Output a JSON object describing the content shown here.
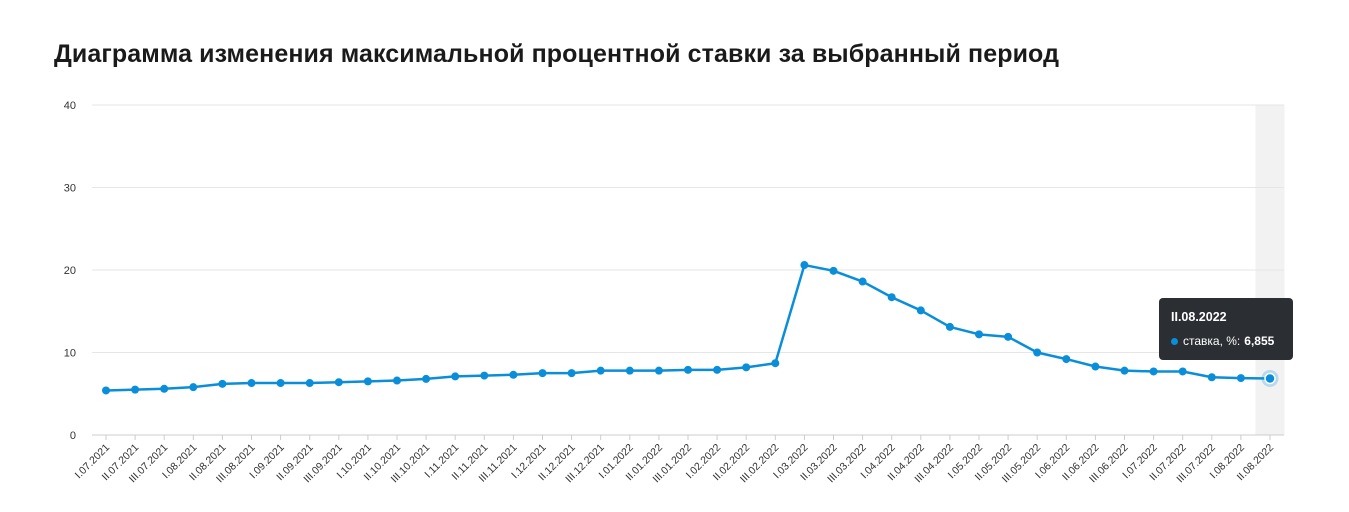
{
  "title": "Диаграмма изменения максимальной процентной ставки за выбранный период",
  "chart_data": {
    "type": "line",
    "title": "Диаграмма изменения максимальной процентной ставки за выбранный период",
    "xlabel": "",
    "ylabel": "",
    "ylim": [
      0,
      40
    ],
    "yticks": [
      0,
      10,
      20,
      30,
      40
    ],
    "grid": true,
    "line_color": "#0a8ed9",
    "categories": [
      "I.07.2021",
      "II.07.2021",
      "III.07.2021",
      "I.08.2021",
      "II.08.2021",
      "III.08.2021",
      "I.09.2021",
      "II.09.2021",
      "III.09.2021",
      "I.10.2021",
      "II.10.2021",
      "III.10.2021",
      "I.11.2021",
      "II.11.2021",
      "III.11.2021",
      "I.12.2021",
      "II.12.2021",
      "III.12.2021",
      "I.01.2022",
      "II.01.2022",
      "III.01.2022",
      "I.02.2022",
      "II.02.2022",
      "III.02.2022",
      "I.03.2022",
      "II.03.2022",
      "III.03.2022",
      "I.04.2022",
      "II.04.2022",
      "III.04.2022",
      "I.05.2022",
      "II.05.2022",
      "III.05.2022",
      "I.06.2022",
      "II.06.2022",
      "III.06.2022",
      "I.07.2022",
      "II.07.2022",
      "III.07.2022",
      "I.08.2022",
      "II.08.2022"
    ],
    "series": [
      {
        "name": "ставка, %",
        "values": [
          5.4,
          5.5,
          5.6,
          5.8,
          6.2,
          6.3,
          6.3,
          6.3,
          6.4,
          6.5,
          6.6,
          6.8,
          7.1,
          7.2,
          7.3,
          7.5,
          7.5,
          7.8,
          7.8,
          7.8,
          7.9,
          7.9,
          8.2,
          8.7,
          20.6,
          19.9,
          18.6,
          16.7,
          15.1,
          13.1,
          12.2,
          11.9,
          10.0,
          9.2,
          8.3,
          7.8,
          7.7,
          7.7,
          7.0,
          6.9,
          6.855
        ]
      }
    ],
    "highlight_index": 40
  },
  "tooltip": {
    "title": "II.08.2022",
    "label": "ставка, %:",
    "value": "6,855"
  }
}
